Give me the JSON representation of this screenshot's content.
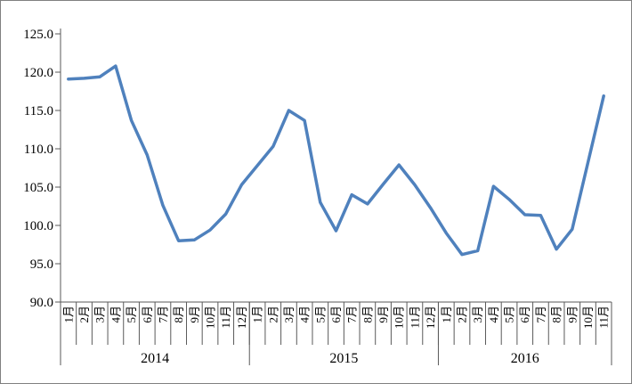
{
  "figure": {
    "background": "#ffffff",
    "border_color": "#808080"
  },
  "chart_data": {
    "type": "line",
    "title": "",
    "legend": false,
    "grid": false,
    "line_color": "#4F81BD",
    "axis_color": "#595959",
    "ylim": [
      90.0,
      125.0
    ],
    "y_tick_step": 5.0,
    "y_tick_labels": [
      "90.0",
      "95.0",
      "100.0",
      "105.0",
      "110.0",
      "115.0",
      "120.0",
      "125.0"
    ],
    "years": [
      {
        "label": "2014",
        "months": [
          "1月",
          "2月",
          "3月",
          "4月",
          "5月",
          "6月",
          "7月",
          "8月",
          "9月",
          "10月",
          "11月",
          "12月"
        ],
        "values": [
          119.1,
          119.2,
          119.4,
          120.8,
          113.7,
          109.2,
          102.6,
          98.0,
          98.1,
          99.4,
          101.5,
          105.3
        ]
      },
      {
        "label": "2015",
        "months": [
          "1月",
          "2月",
          "3月",
          "4月",
          "5月",
          "6月",
          "7月",
          "8月",
          "9月",
          "10月",
          "11月",
          "12月"
        ],
        "values": [
          107.8,
          110.3,
          115.0,
          113.7,
          103.0,
          99.3,
          104.0,
          102.8,
          105.4,
          107.9,
          105.3,
          102.3
        ]
      },
      {
        "label": "2016",
        "months": [
          "1月",
          "2月",
          "3月",
          "4月",
          "5月",
          "6月",
          "7月",
          "8月",
          "9月",
          "10月",
          "11月"
        ],
        "values": [
          99.0,
          96.2,
          96.7,
          105.1,
          103.4,
          101.4,
          101.3,
          96.9,
          99.5,
          108.2,
          116.9
        ]
      }
    ]
  }
}
